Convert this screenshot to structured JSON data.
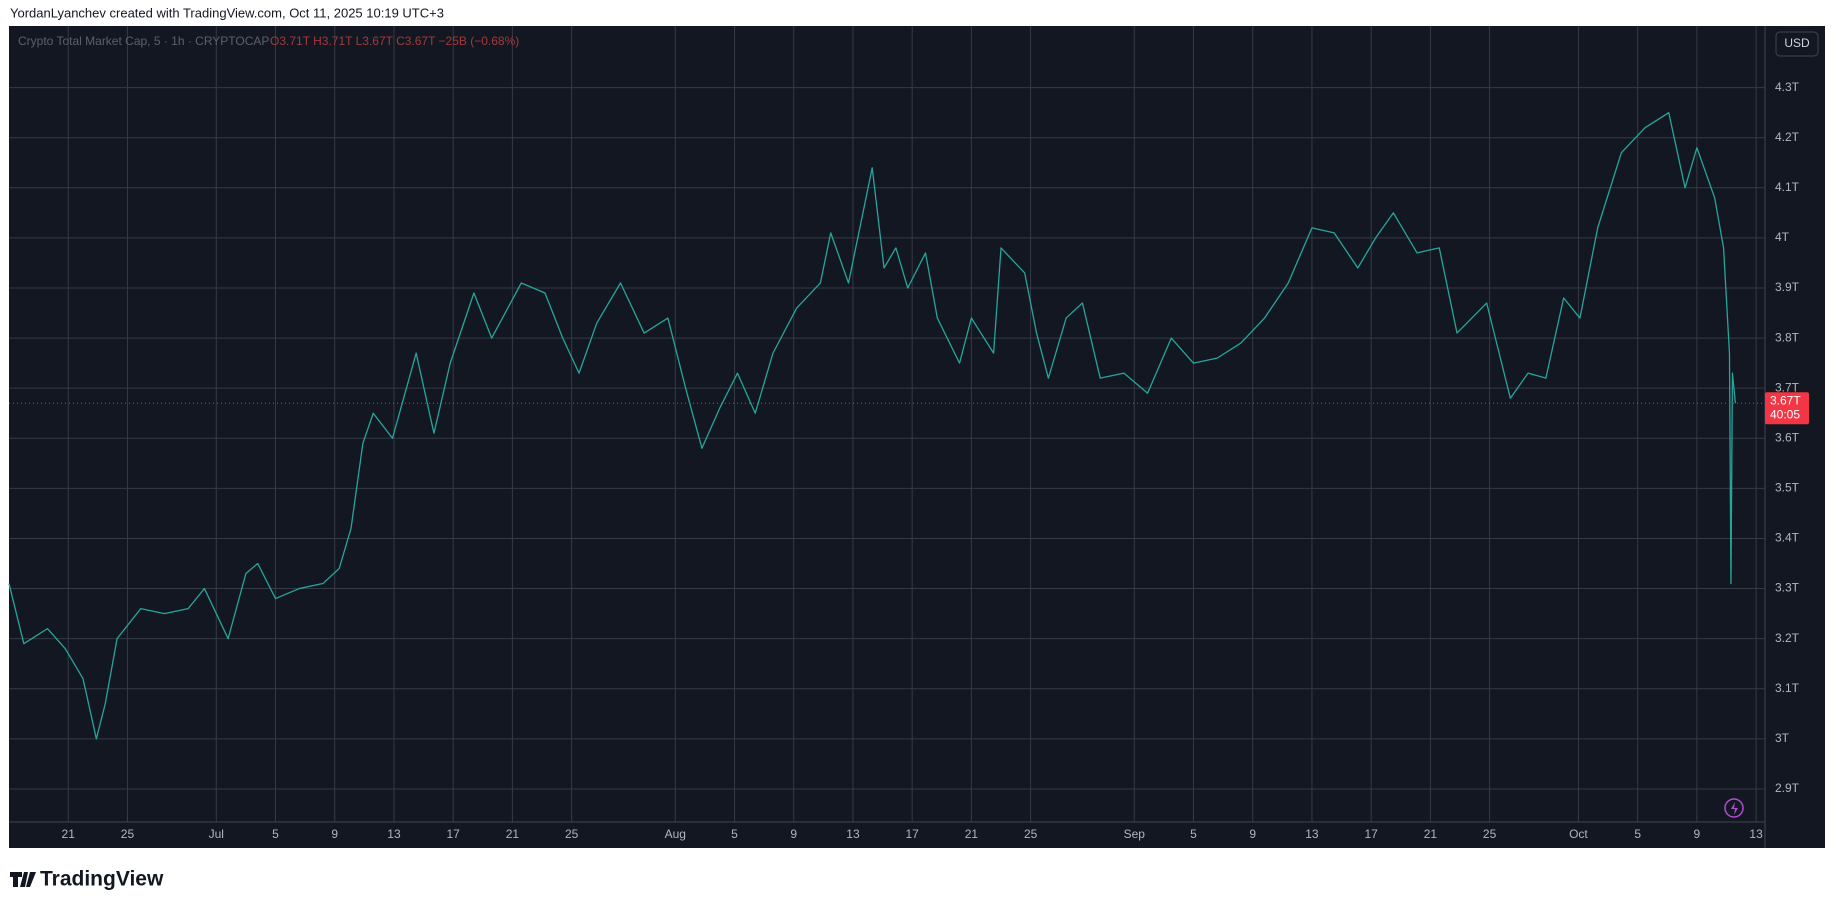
{
  "header": "YordanLyanchev created with TradingView.com, Oct 11, 2025 10:19 UTC+3",
  "brand": "TradingView",
  "currency": "USD",
  "chart_data": {
    "type": "line",
    "legend_text": "Crypto Total Market Cap, 5 · 1h · CRYPTOCAP",
    "ohlc_text": "O3.71T H3.71T L3.67T C3.67T −25B (−0.68%)",
    "series": [
      {
        "color": "#26a69a",
        "x": [
          16.0,
          17.0,
          18.6,
          19.8,
          21.0,
          21.9,
          22.5,
          23.3,
          24.9,
          26.5,
          28.1,
          29.2,
          30.8,
          32.0,
          32.8,
          34.0,
          35.6,
          37.2,
          38.3,
          39.1,
          39.9,
          40.6,
          41.9,
          43.5,
          44.7,
          45.8,
          47.4,
          48.6,
          50.6,
          52.2,
          53.4,
          54.5,
          55.7,
          57.3,
          58.9,
          60.5,
          61.7,
          62.8,
          64.0,
          65.2,
          66.4,
          67.6,
          69.2,
          70.8,
          71.5,
          72.7,
          74.3,
          75.1,
          75.9,
          76.7,
          77.9,
          78.7,
          80.2,
          81.0,
          82.5,
          83.0,
          84.6,
          85.4,
          86.2,
          87.4,
          88.5,
          89.7,
          91.3,
          92.9,
          94.5,
          96.0,
          97.6,
          99.2,
          100.8,
          102.4,
          104.0,
          105.5,
          107.1,
          108.3,
          109.5,
          111.1,
          112.6,
          113.8,
          115.8,
          117.4,
          118.6,
          119.8,
          121.0,
          122.1,
          123.3,
          124.9,
          126.5,
          128.1,
          129.2,
          130.0,
          131.2,
          131.8,
          132.2,
          132.3,
          132.4,
          132.6
        ],
        "values": [
          3.31,
          3.19,
          3.22,
          3.18,
          3.12,
          3.0,
          3.07,
          3.2,
          3.26,
          3.25,
          3.26,
          3.3,
          3.2,
          3.33,
          3.35,
          3.28,
          3.3,
          3.31,
          3.34,
          3.42,
          3.59,
          3.65,
          3.6,
          3.77,
          3.61,
          3.75,
          3.89,
          3.8,
          3.91,
          3.89,
          3.8,
          3.73,
          3.83,
          3.91,
          3.81,
          3.84,
          3.7,
          3.58,
          3.66,
          3.73,
          3.65,
          3.77,
          3.86,
          3.91,
          4.01,
          3.91,
          4.14,
          3.94,
          3.98,
          3.9,
          3.97,
          3.84,
          3.75,
          3.84,
          3.77,
          3.98,
          3.93,
          3.81,
          3.72,
          3.84,
          3.87,
          3.72,
          3.73,
          3.69,
          3.8,
          3.75,
          3.76,
          3.79,
          3.84,
          3.91,
          4.02,
          4.01,
          3.94,
          4.0,
          4.05,
          3.97,
          3.98,
          3.81,
          3.87,
          3.68,
          3.73,
          3.72,
          3.88,
          3.84,
          4.02,
          4.17,
          4.22,
          4.25,
          4.1,
          4.18,
          4.08,
          3.98,
          3.77,
          3.31,
          3.73,
          3.67
        ]
      }
    ],
    "last_price": {
      "value": 3.67,
      "label": "3.67T",
      "countdown": "40:05",
      "color": "#f23645"
    },
    "xlim": [
      16.0,
      134.6
    ],
    "xticks": [
      {
        "value": 20,
        "label": "21"
      },
      {
        "value": 24,
        "label": "25"
      },
      {
        "value": 30,
        "label": "Jul"
      },
      {
        "value": 34,
        "label": "5"
      },
      {
        "value": 38,
        "label": "9"
      },
      {
        "value": 42,
        "label": "13"
      },
      {
        "value": 46,
        "label": "17"
      },
      {
        "value": 50,
        "label": "21"
      },
      {
        "value": 54,
        "label": "25"
      },
      {
        "value": 61,
        "label": "Aug"
      },
      {
        "value": 65,
        "label": "5"
      },
      {
        "value": 69,
        "label": "9"
      },
      {
        "value": 73,
        "label": "13"
      },
      {
        "value": 77,
        "label": "17"
      },
      {
        "value": 81,
        "label": "21"
      },
      {
        "value": 85,
        "label": "25"
      },
      {
        "value": 92,
        "label": "Sep"
      },
      {
        "value": 96,
        "label": "5"
      },
      {
        "value": 100,
        "label": "9"
      },
      {
        "value": 104,
        "label": "13"
      },
      {
        "value": 108,
        "label": "17"
      },
      {
        "value": 112,
        "label": "21"
      },
      {
        "value": 116,
        "label": "25"
      },
      {
        "value": 122,
        "label": "Oct"
      },
      {
        "value": 126,
        "label": "5"
      },
      {
        "value": 130,
        "label": "9"
      },
      {
        "value": 134,
        "label": "13"
      }
    ],
    "ylim": [
      2.834,
      4.423
    ],
    "yticks": [
      {
        "value": 2.9,
        "label": "2.9T"
      },
      {
        "value": 3,
        "label": "3T"
      },
      {
        "value": 3.1,
        "label": "3.1T"
      },
      {
        "value": 3.2,
        "label": "3.2T"
      },
      {
        "value": 3.3,
        "label": "3.3T"
      },
      {
        "value": 3.4,
        "label": "3.4T"
      },
      {
        "value": 3.5,
        "label": "3.5T"
      },
      {
        "value": 3.6,
        "label": "3.6T"
      },
      {
        "value": 3.7,
        "label": "3.7T"
      },
      {
        "value": 3.8,
        "label": "3.8T"
      },
      {
        "value": 3.9,
        "label": "3.9T"
      },
      {
        "value": 4,
        "label": "4T"
      },
      {
        "value": 4.1,
        "label": "4.1T"
      },
      {
        "value": 4.2,
        "label": "4.2T"
      },
      {
        "value": 4.3,
        "label": "4.3T"
      }
    ],
    "grid": true
  }
}
